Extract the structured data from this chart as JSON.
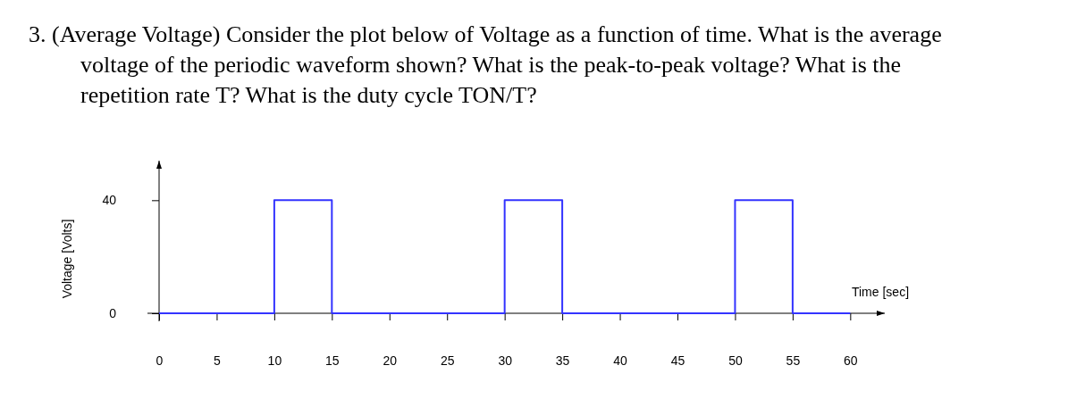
{
  "chart_data": {
    "type": "step",
    "title": "3. (Average Voltage) Consider the plot below of Voltage as a function of time. What is the average voltage of the periodic waveform shown? What is the peak-to-peak voltage? What is the repetition rate T? What is the duty cycle TON/T?",
    "xlabel": "Time [sec]",
    "ylabel": "Voltage [Volts]",
    "x": [
      0,
      10,
      15,
      30,
      35,
      50,
      55,
      60
    ],
    "series": [
      {
        "color": "#3333ff",
        "values": [
          0,
          40,
          0,
          40,
          0,
          40,
          0,
          0
        ]
      }
    ],
    "xlim": [
      0,
      63
    ],
    "ylim": [
      0,
      54
    ],
    "xticks": [
      0,
      5,
      10,
      15,
      20,
      25,
      30,
      35,
      40,
      45,
      50,
      55,
      60
    ],
    "yticks": [
      0,
      40
    ],
    "grid": false,
    "marker": "none",
    "line_style": "solid"
  }
}
